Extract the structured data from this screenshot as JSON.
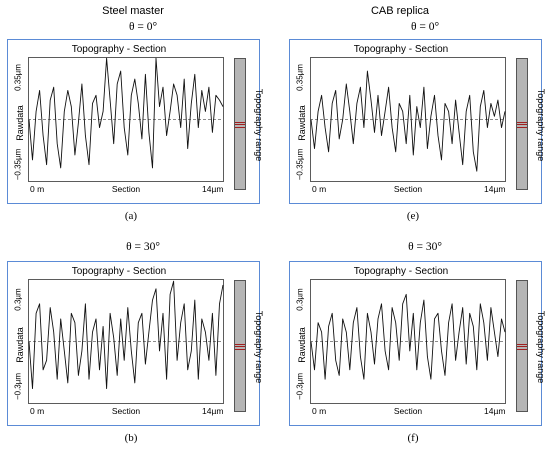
{
  "columns": [
    {
      "title": "Steel master"
    },
    {
      "title": "CAB replica"
    }
  ],
  "chart_data": [
    {
      "type": "line",
      "panel": "(a)",
      "column": "Steel master",
      "angle_label": "θ = 0°",
      "title": "Topography - Section",
      "ylabel": "Rawdata",
      "xlabel": "Section",
      "ytick_top": "0.35µm",
      "ytick_bottom": "−0.35µm",
      "x_start": "0 m",
      "x_end": "14µm",
      "ylim": [
        -0.35,
        0.35
      ],
      "xlim": [
        0,
        14
      ],
      "range_label": "Topography range",
      "grid": false,
      "series": [
        {
          "y": [
            0.0,
            -0.25,
            0.05,
            0.18,
            -0.1,
            -0.28,
            0.12,
            0.2,
            -0.15,
            -0.3,
            0.05,
            0.18,
            0.08,
            -0.22,
            -0.02,
            0.22,
            -0.1,
            -0.28,
            0.1,
            0.15,
            -0.05,
            0.05,
            0.38,
            0.12,
            -0.15,
            0.22,
            0.3,
            -0.05,
            -0.22,
            0.15,
            0.25,
            0.1,
            -0.12,
            0.28,
            -0.08,
            -0.3,
            0.38,
            0.08,
            0.2,
            -0.1,
            0.05,
            0.22,
            0.15,
            -0.05,
            0.25,
            -0.18,
            0.1,
            0.28,
            -0.05,
            0.18,
            0.05,
            0.2,
            -0.08,
            0.15,
            0.12,
            0.08
          ]
        }
      ]
    },
    {
      "type": "line",
      "panel": "(e)",
      "column": "CAB replica",
      "angle_label": "θ = 0°",
      "title": "Topography - Section",
      "ylabel": "Rawdata",
      "xlabel": "Section",
      "ytick_top": "0.35µm",
      "ytick_bottom": "−0.35µm",
      "x_start": "0 m",
      "x_end": "14µm",
      "ylim": [
        -0.35,
        0.35
      ],
      "xlim": [
        0,
        14
      ],
      "range_label": "Topography range",
      "grid": false,
      "series": [
        {
          "y": [
            0.0,
            -0.18,
            0.05,
            0.15,
            -0.05,
            -0.2,
            0.1,
            0.18,
            -0.12,
            0.0,
            0.22,
            0.05,
            -0.15,
            0.1,
            0.2,
            -0.05,
            0.3,
            0.12,
            -0.08,
            0.15,
            -0.1,
            0.05,
            0.2,
            -0.05,
            -0.2,
            0.1,
            0.05,
            -0.15,
            0.15,
            -0.22,
            0.08,
            -0.05,
            0.2,
            -0.18,
            0.02,
            0.15,
            -0.1,
            -0.25,
            0.1,
            0.05,
            -0.15,
            0.12,
            -0.08,
            -0.28,
            0.05,
            0.15,
            -0.2,
            -0.32,
            0.08,
            0.18,
            -0.05,
            0.1,
            0.02,
            0.12,
            -0.05,
            0.05
          ]
        }
      ]
    },
    {
      "type": "line",
      "panel": "(b)",
      "column": "Steel master",
      "angle_label": "θ = 30°",
      "title": "Topography - Section",
      "ylabel": "Rawdata",
      "xlabel": "Section",
      "ytick_top": "0.3µm",
      "ytick_bottom": "−0.3µm",
      "x_start": "0 m",
      "x_end": "14µm",
      "ylim": [
        -0.3,
        0.3
      ],
      "xlim": [
        0,
        14
      ],
      "range_label": "Topography range",
      "grid": false,
      "series": [
        {
          "y": [
            0.0,
            -0.25,
            0.15,
            0.2,
            -0.15,
            -0.1,
            0.18,
            0.05,
            -0.2,
            0.12,
            -0.05,
            -0.22,
            0.15,
            0.1,
            -0.18,
            -0.05,
            0.2,
            -0.2,
            0.05,
            0.12,
            -0.15,
            0.08,
            -0.25,
            0.15,
            0.02,
            -0.18,
            0.12,
            -0.1,
            0.18,
            -0.05,
            -0.22,
            0.1,
            0.15,
            -0.12,
            0.05,
            0.22,
            0.28,
            -0.05,
            0.15,
            -0.2,
            0.25,
            0.32,
            -0.1,
            0.1,
            0.2,
            -0.15,
            -0.05,
            0.22,
            -0.2,
            0.12,
            0.05,
            -0.1,
            0.15,
            -0.18,
            0.2,
            0.3
          ]
        }
      ]
    },
    {
      "type": "line",
      "panel": "(f)",
      "column": "CAB replica",
      "angle_label": "θ = 30°",
      "title": "Topography - Section",
      "ylabel": "Rawdata",
      "xlabel": "Section",
      "ytick_top": "0.3µm",
      "ytick_bottom": "−0.3µm",
      "x_start": "0 m",
      "x_end": "14µm",
      "ylim": [
        -0.3,
        0.3
      ],
      "xlim": [
        0,
        14
      ],
      "range_label": "Topography range",
      "grid": false,
      "series": [
        {
          "y": [
            0.0,
            -0.15,
            0.1,
            0.05,
            -0.2,
            0.08,
            0.15,
            -0.1,
            -0.18,
            0.12,
            0.05,
            -0.15,
            0.1,
            0.18,
            -0.08,
            -0.2,
            0.15,
            0.05,
            -0.12,
            0.12,
            0.2,
            -0.05,
            -0.15,
            0.18,
            0.1,
            -0.1,
            0.2,
            0.25,
            -0.05,
            0.15,
            -0.15,
            0.1,
            0.22,
            -0.08,
            -0.2,
            0.12,
            0.15,
            -0.05,
            -0.18,
            0.1,
            0.2,
            -0.1,
            0.05,
            0.18,
            -0.12,
            0.15,
            0.08,
            -0.15,
            0.2,
            0.1,
            -0.1,
            0.18,
            0.05,
            -0.08,
            0.12,
            0.05
          ]
        }
      ]
    }
  ]
}
